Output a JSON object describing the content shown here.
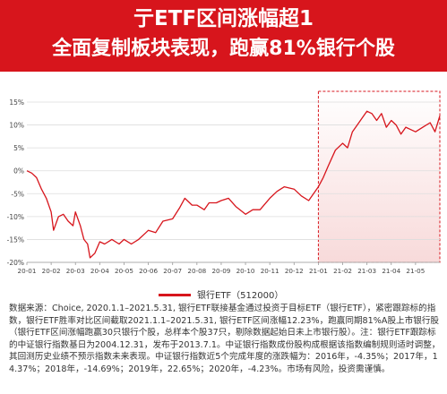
{
  "header": {
    "line1": "亍ETF区间涨幅超1",
    "line2": "全面复制板块表现，跑赢81%银行个股"
  },
  "colors": {
    "banner": "#d7151c",
    "line": "#d7151c",
    "highlight_fill": "#f8dada",
    "highlight_border": "#d7151c"
  },
  "chart_data": {
    "type": "line",
    "title": "",
    "xlabel": "",
    "ylabel": "",
    "ylim": [
      -20,
      15
    ],
    "yticks": [
      -20,
      -15,
      -10,
      -5,
      0,
      5,
      10,
      15
    ],
    "ytick_labels": [
      "-20%",
      "-15%",
      "-10%",
      "-5%",
      "0%",
      "5%",
      "10%",
      "15%"
    ],
    "xlim": [
      0,
      17
    ],
    "xticks": [
      "20-01",
      "20-02",
      "20-03",
      "20-04",
      "20-05",
      "20-06",
      "20-07",
      "20-08",
      "20-09",
      "20-10",
      "20-11",
      "20-12",
      "21-01",
      "21-02",
      "21-03",
      "21-04",
      "21-05"
    ],
    "grid": true,
    "legend_position": "bottom",
    "highlight_range": [
      12,
      17
    ],
    "series": [
      {
        "name": "银行ETF（512000）",
        "x": [
          0,
          0.2,
          0.4,
          0.6,
          0.8,
          1.0,
          1.1,
          1.3,
          1.5,
          1.7,
          1.9,
          2.0,
          2.2,
          2.35,
          2.5,
          2.6,
          2.8,
          3.0,
          3.2,
          3.5,
          3.8,
          4.0,
          4.3,
          4.6,
          4.9,
          5.0,
          5.3,
          5.6,
          6.0,
          6.3,
          6.5,
          6.8,
          7.0,
          7.3,
          7.5,
          7.8,
          8.0,
          8.3,
          8.6,
          9.0,
          9.3,
          9.6,
          10.0,
          10.3,
          10.6,
          11.0,
          11.3,
          11.6,
          12.0,
          12.2,
          12.4,
          12.7,
          13.0,
          13.2,
          13.4,
          13.6,
          13.8,
          14.0,
          14.2,
          14.4,
          14.6,
          14.8,
          15.0,
          15.2,
          15.4,
          15.6,
          15.8,
          16.0,
          16.3,
          16.6,
          16.8,
          17.0
        ],
        "y": [
          0,
          -0.5,
          -1.5,
          -4,
          -6,
          -9,
          -13,
          -10,
          -9.5,
          -11,
          -12,
          -9,
          -12,
          -15,
          -16,
          -19,
          -18,
          -15.5,
          -16,
          -15,
          -16,
          -15,
          -16,
          -15,
          -13.5,
          -13,
          -13.5,
          -11,
          -10.5,
          -8,
          -6,
          -7.5,
          -7.5,
          -8.5,
          -7,
          -7,
          -6.5,
          -6,
          -7.8,
          -9.5,
          -8.5,
          -8.5,
          -6,
          -4.5,
          -3.5,
          -4,
          -5.5,
          -6.5,
          -3.5,
          -1.5,
          1,
          4.5,
          6,
          5,
          8.5,
          10,
          11.5,
          13,
          12.5,
          11,
          12.5,
          9.5,
          11,
          10,
          8,
          9.5,
          9,
          8.5,
          9.5,
          10.5,
          8.5,
          12
        ]
      }
    ]
  },
  "notes": {
    "p1": "数据来源：Choice, 2020.1.1–2021.5.31, 银行ETF联接基金通过投资于目标ETF（银行ETF），紧密跟踪标的指数，银行ETF胜率对比区间截取2021.1.1–2021.5.31, 银行ETF区间涨幅12.23%，跑赢同期81%A股上市银行股（银行ETF区间涨幅跑赢30只银行个股，总样本个股37只，剔除数据起始日未上市银行股）。注：银行ETF跟踪标的中证银行指数基日为2004.12.31，发布于2013.7.1。中证银行指数成份股构成根据该指数编制规则适时调整，其回测历史业绩不预示指数未来表现。中证银行指数近5个完成年度的涨跌幅为：2016年，-4.35%；2017年，14.37%；2018年，-14.69%；2019年，22.65%；2020年，-4.23%。市场有风险，投资需谨慎。"
  }
}
